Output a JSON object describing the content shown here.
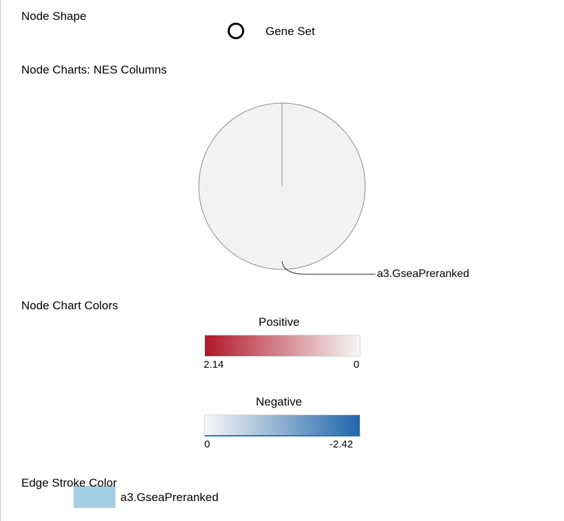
{
  "node_shape": {
    "heading": "Node Shape",
    "shape_icon": "circle-icon",
    "label": "Gene Set"
  },
  "node_charts": {
    "heading": "Node Charts: NES Columns",
    "slice_label": "a3.GseaPreranked"
  },
  "node_chart_colors": {
    "heading": "Node Chart Colors",
    "positive": {
      "title": "Positive",
      "min_label": "2.14",
      "max_label": "0",
      "color_start": "#b2182b",
      "color_end": "#f7f7f7"
    },
    "negative": {
      "title": "Negative",
      "min_label": "0",
      "max_label": "-2.42",
      "color_start": "#f7f7f7",
      "color_end": "#2166ac"
    }
  },
  "edge_stroke_color": {
    "heading": "Edge Stroke Color",
    "swatch_color": "#a6cee3",
    "label": "a3.GseaPreranked"
  }
}
